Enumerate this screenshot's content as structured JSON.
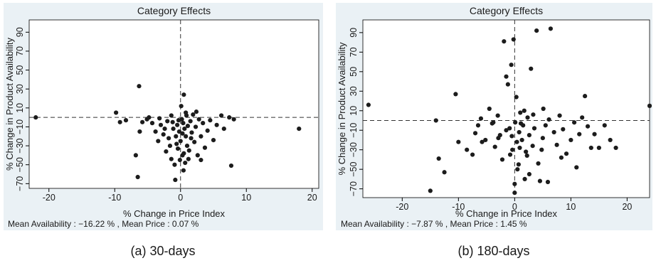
{
  "chart_data": [
    {
      "type": "scatter",
      "title": "Category Effects",
      "xlabel": "% Change in Price Index",
      "ylabel": "% Change in Product Availability",
      "xlim": [
        -23,
        21
      ],
      "ylim": [
        -75,
        103
      ],
      "xticks": [
        -20,
        -10,
        0,
        10,
        20
      ],
      "yticks": [
        -70,
        -50,
        -30,
        -10,
        10,
        30,
        50,
        70,
        90
      ],
      "ref_x": 0,
      "ref_y": 0,
      "note": "Mean Availability : −16.22 % , Mean Price : 0.07 %",
      "caption": "(a) 30-days",
      "grid": false,
      "points": [
        [
          -22,
          0
        ],
        [
          18,
          -12
        ],
        [
          -6.3,
          33
        ],
        [
          -6.5,
          -63
        ],
        [
          -9.8,
          5
        ],
        [
          -9.2,
          -5
        ],
        [
          -8.3,
          -3
        ],
        [
          -6.8,
          -40
        ],
        [
          -6.2,
          -15
        ],
        [
          -5.8,
          -5
        ],
        [
          -5.1,
          -2
        ],
        [
          -4.8,
          0
        ],
        [
          -4.3,
          -6
        ],
        [
          -3.8,
          -15
        ],
        [
          -3.4,
          -25
        ],
        [
          -3,
          -8
        ],
        [
          -2.6,
          -18
        ],
        [
          -2.2,
          -36
        ],
        [
          -2,
          -4
        ],
        [
          -1.6,
          -30
        ],
        [
          -1.4,
          -44
        ],
        [
          -1.1,
          -12
        ],
        [
          -0.9,
          -50
        ],
        [
          -0.7,
          -20
        ],
        [
          -0.5,
          -8
        ],
        [
          -0.3,
          -3
        ],
        [
          -0.2,
          -15
        ],
        [
          0,
          -25
        ],
        [
          0.1,
          12
        ],
        [
          0.2,
          -2
        ],
        [
          0.3,
          -40
        ],
        [
          0.4,
          -6
        ],
        [
          0.5,
          24
        ],
        [
          0.6,
          -12
        ],
        [
          0.7,
          -48
        ],
        [
          0.8,
          -20
        ],
        [
          0.9,
          2
        ],
        [
          1,
          -30
        ],
        [
          1.1,
          -9
        ],
        [
          1.3,
          -35
        ],
        [
          1.5,
          -4
        ],
        [
          1.7,
          -16
        ],
        [
          1.9,
          3
        ],
        [
          2.1,
          -26
        ],
        [
          2.3,
          -10
        ],
        [
          2.6,
          -40
        ],
        [
          2.8,
          -2
        ],
        [
          3.1,
          -20
        ],
        [
          3.4,
          -6
        ],
        [
          3.7,
          -32
        ],
        [
          4.1,
          -14
        ],
        [
          4.5,
          -3
        ],
        [
          5,
          -24
        ],
        [
          5.5,
          -8
        ],
        [
          6.2,
          2
        ],
        [
          6.6,
          -12
        ],
        [
          7.4,
          0
        ],
        [
          7.7,
          -51
        ],
        [
          8.1,
          -2
        ],
        [
          -0.8,
          -66
        ],
        [
          -1.8,
          -22
        ],
        [
          -2.4,
          -12
        ],
        [
          -3.2,
          -1
        ],
        [
          -0.4,
          -33
        ],
        [
          0.45,
          -56
        ],
        [
          1.2,
          -44
        ],
        [
          -1.2,
          -5
        ],
        [
          0.8,
          5
        ],
        [
          -0.1,
          -45
        ],
        [
          0.3,
          -17
        ],
        [
          2.4,
          6
        ],
        [
          -1.4,
          2
        ],
        [
          1.6,
          -22
        ],
        [
          -0.6,
          -28
        ],
        [
          0.5,
          -38
        ],
        [
          3.1,
          -45
        ]
      ]
    },
    {
      "type": "scatter",
      "title": "Category Effects",
      "xlabel": "% Change in Price Index",
      "ylabel": "% Change in Product Availability",
      "xlim": [
        -27,
        24
      ],
      "ylim": [
        -79,
        103
      ],
      "xticks": [
        -20,
        -10,
        0,
        10,
        20
      ],
      "yticks": [
        -70,
        -50,
        -30,
        -10,
        10,
        30,
        50,
        70,
        90
      ],
      "ref_x": 0,
      "ref_y": 0,
      "note": "Mean Availability : −7.87 % , Mean Price : 1.45 %",
      "caption": "(b) 180-days",
      "grid": false,
      "points": [
        [
          -26,
          16
        ],
        [
          24,
          15
        ],
        [
          -15,
          -72
        ],
        [
          -13.5,
          -39
        ],
        [
          -12.5,
          -53
        ],
        [
          -14,
          0
        ],
        [
          -10.5,
          27
        ],
        [
          -10,
          -22
        ],
        [
          -8.5,
          -30
        ],
        [
          -7.5,
          -35
        ],
        [
          -7,
          -13
        ],
        [
          -6.5,
          -5
        ],
        [
          -6,
          2
        ],
        [
          -5.2,
          -20
        ],
        [
          -4.5,
          12
        ],
        [
          -4,
          -3
        ],
        [
          -3.5,
          -27
        ],
        [
          -3,
          5
        ],
        [
          -2.6,
          -15
        ],
        [
          -2.2,
          -40
        ],
        [
          -1.9,
          81
        ],
        [
          -1.5,
          45
        ],
        [
          -1.2,
          37
        ],
        [
          -0.9,
          -8
        ],
        [
          -0.6,
          57
        ],
        [
          -0.4,
          -30
        ],
        [
          -0.2,
          83
        ],
        [
          0,
          -65
        ],
        [
          0,
          -74
        ],
        [
          0.1,
          -2
        ],
        [
          0.3,
          24
        ],
        [
          0.5,
          -50
        ],
        [
          0.8,
          -12
        ],
        [
          1,
          8
        ],
        [
          1.3,
          -20
        ],
        [
          1.5,
          -5
        ],
        [
          1.8,
          -60
        ],
        [
          2,
          -32
        ],
        [
          2.3,
          3
        ],
        [
          2.6,
          -15
        ],
        [
          2.9,
          53
        ],
        [
          3.2,
          -26
        ],
        [
          3.5,
          -8
        ],
        [
          3.9,
          92
        ],
        [
          4.2,
          -44
        ],
        [
          4.5,
          -62
        ],
        [
          5,
          -18
        ],
        [
          5.5,
          -5
        ],
        [
          5.9,
          -63
        ],
        [
          6.4,
          94
        ],
        [
          7,
          -12
        ],
        [
          7.5,
          -25
        ],
        [
          8,
          5
        ],
        [
          8.6,
          -9
        ],
        [
          9.2,
          -34
        ],
        [
          10,
          -20
        ],
        [
          10.6,
          -2
        ],
        [
          11,
          -48
        ],
        [
          11.5,
          -14
        ],
        [
          12,
          3
        ],
        [
          12.5,
          25
        ],
        [
          13,
          -6
        ],
        [
          13.6,
          -28
        ],
        [
          14.2,
          -14
        ],
        [
          15,
          -28
        ],
        [
          16,
          -5
        ],
        [
          17,
          -20
        ],
        [
          18,
          -28
        ],
        [
          -0.8,
          -35
        ],
        [
          0.7,
          -45
        ],
        [
          1.1,
          -3
        ],
        [
          2.2,
          -36
        ],
        [
          -1.5,
          -10
        ],
        [
          3.3,
          6
        ],
        [
          0.4,
          -22
        ],
        [
          -2.9,
          -18
        ],
        [
          4.8,
          -30
        ],
        [
          6.1,
          1
        ],
        [
          1.7,
          10
        ],
        [
          -0.5,
          -16
        ],
        [
          2.6,
          -55
        ],
        [
          0.9,
          -28
        ],
        [
          -3.8,
          -2
        ],
        [
          -5.8,
          -22
        ],
        [
          8.3,
          -38
        ],
        [
          5.1,
          12
        ]
      ]
    }
  ]
}
